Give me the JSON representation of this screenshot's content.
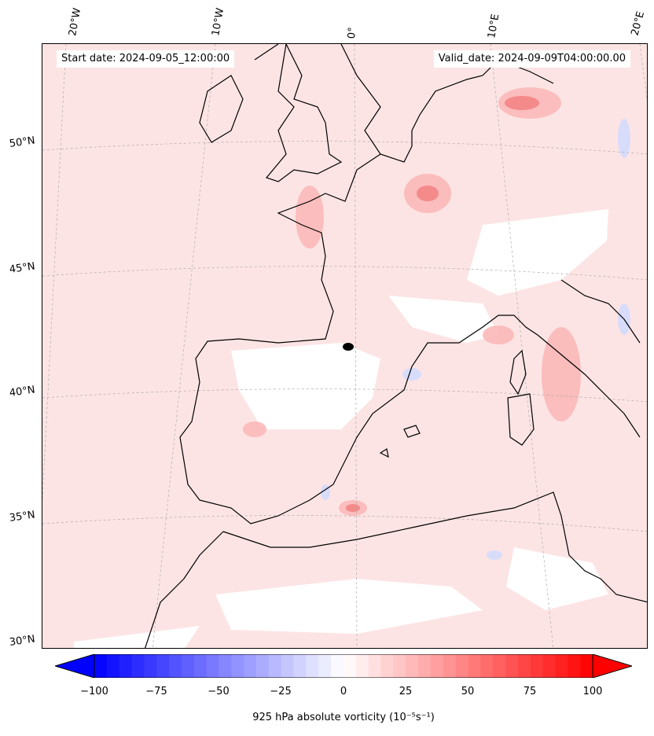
{
  "header": {
    "start_date": "Start date: 2024-09-05_12:00:00",
    "valid_date": "Valid_date: 2024-09-09T04:00:00.00"
  },
  "map": {
    "projection": "lambert-conformal",
    "longitude_labels": [
      "20°W",
      "10°W",
      "0°",
      "10°E",
      "20°E"
    ],
    "latitude_labels": [
      "50°N",
      "45°N",
      "40°N",
      "35°N",
      "30°N"
    ],
    "gridlines": "dotted grey",
    "coastline_color": "#000000",
    "marker": "black dot near 42°N, 0°"
  },
  "colorbar": {
    "colormap": "bwr",
    "min": -100,
    "max": 100,
    "ticks": [
      "−100",
      "−75",
      "−50",
      "−25",
      "0",
      "25",
      "50",
      "75",
      "100"
    ],
    "extend": "both",
    "label": "925 hPa absolute vorticity (10⁻⁵s⁻¹)",
    "low_color": "#0000ff",
    "mid_color": "#ffffff",
    "high_color": "#ff0000"
  }
}
